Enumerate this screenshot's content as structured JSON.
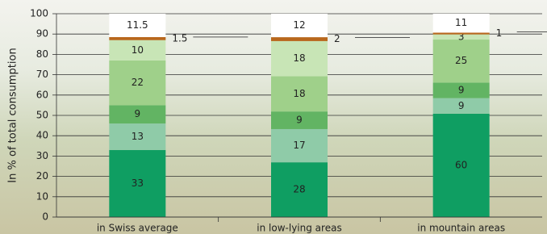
{
  "chart_data": {
    "type": "bar",
    "stack": "percent",
    "y_label": "In % of total consumption",
    "categories": [
      "in Swiss average",
      "in low-lying areas",
      "in mountain areas"
    ],
    "series": [
      {
        "color": "#0f9e62",
        "values": [
          33,
          28,
          60
        ]
      },
      {
        "color": "#8fcba8",
        "values": [
          13,
          17,
          9
        ]
      },
      {
        "color": "#62b463",
        "values": [
          9,
          9,
          9
        ]
      },
      {
        "color": "#9fd08a",
        "values": [
          22,
          18,
          25
        ]
      },
      {
        "color": "#c8e5b6",
        "values": [
          10,
          18,
          3
        ]
      },
      {
        "color": "#b8671c",
        "values": [
          1.5,
          2,
          1
        ],
        "label_outside": true
      },
      {
        "color": "#ffffff",
        "values": [
          11.5,
          12,
          11
        ]
      }
    ],
    "ylim": [
      0,
      100
    ],
    "yticks": [
      0,
      10,
      20,
      30,
      40,
      50,
      60,
      70,
      80,
      90,
      100
    ],
    "grid": true
  }
}
